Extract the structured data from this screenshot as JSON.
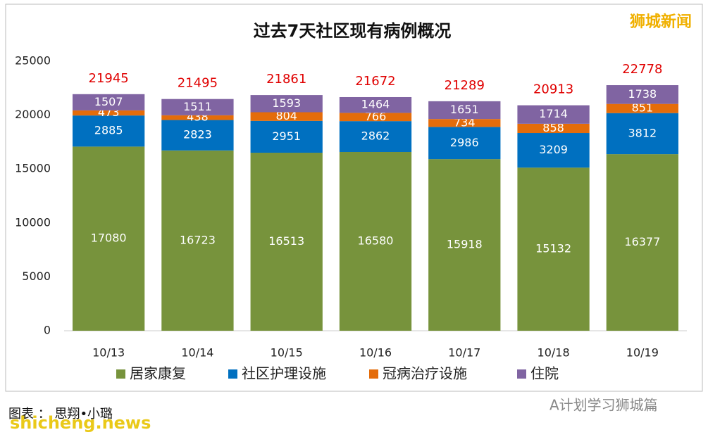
{
  "chart_data": {
    "type": "stacked_bar",
    "title": "过去7天社区现有病例概况",
    "categories": [
      "10/13",
      "10/14",
      "10/15",
      "10/16",
      "10/17",
      "10/18",
      "10/19"
    ],
    "series": [
      {
        "name": "居家康复",
        "color": "#77933c",
        "values": [
          17080,
          16723,
          16513,
          16580,
          15918,
          15132,
          16377
        ]
      },
      {
        "name": "社区护理设施",
        "color": "#0070c0",
        "values": [
          2885,
          2823,
          2951,
          2862,
          2986,
          3209,
          3812
        ]
      },
      {
        "name": "冠病治疗设施",
        "color": "#e46c0a",
        "values": [
          473,
          438,
          804,
          766,
          734,
          858,
          851
        ]
      },
      {
        "name": "住院",
        "color": "#8064a2",
        "values": [
          1507,
          1511,
          1593,
          1464,
          1651,
          1714,
          1738
        ]
      }
    ],
    "totals": [
      21945,
      21495,
      21861,
      21672,
      21289,
      20913,
      22778
    ],
    "ylim": [
      0,
      25000
    ],
    "yticks": [
      0,
      5000,
      10000,
      15000,
      20000,
      25000
    ],
    "grid": false,
    "legend": "bottom"
  },
  "watermark": "狮城新闻",
  "caption": "图表 ： 思翔•小璐",
  "site": "shicheng.news",
  "wechat": "A计划学习狮城篇"
}
